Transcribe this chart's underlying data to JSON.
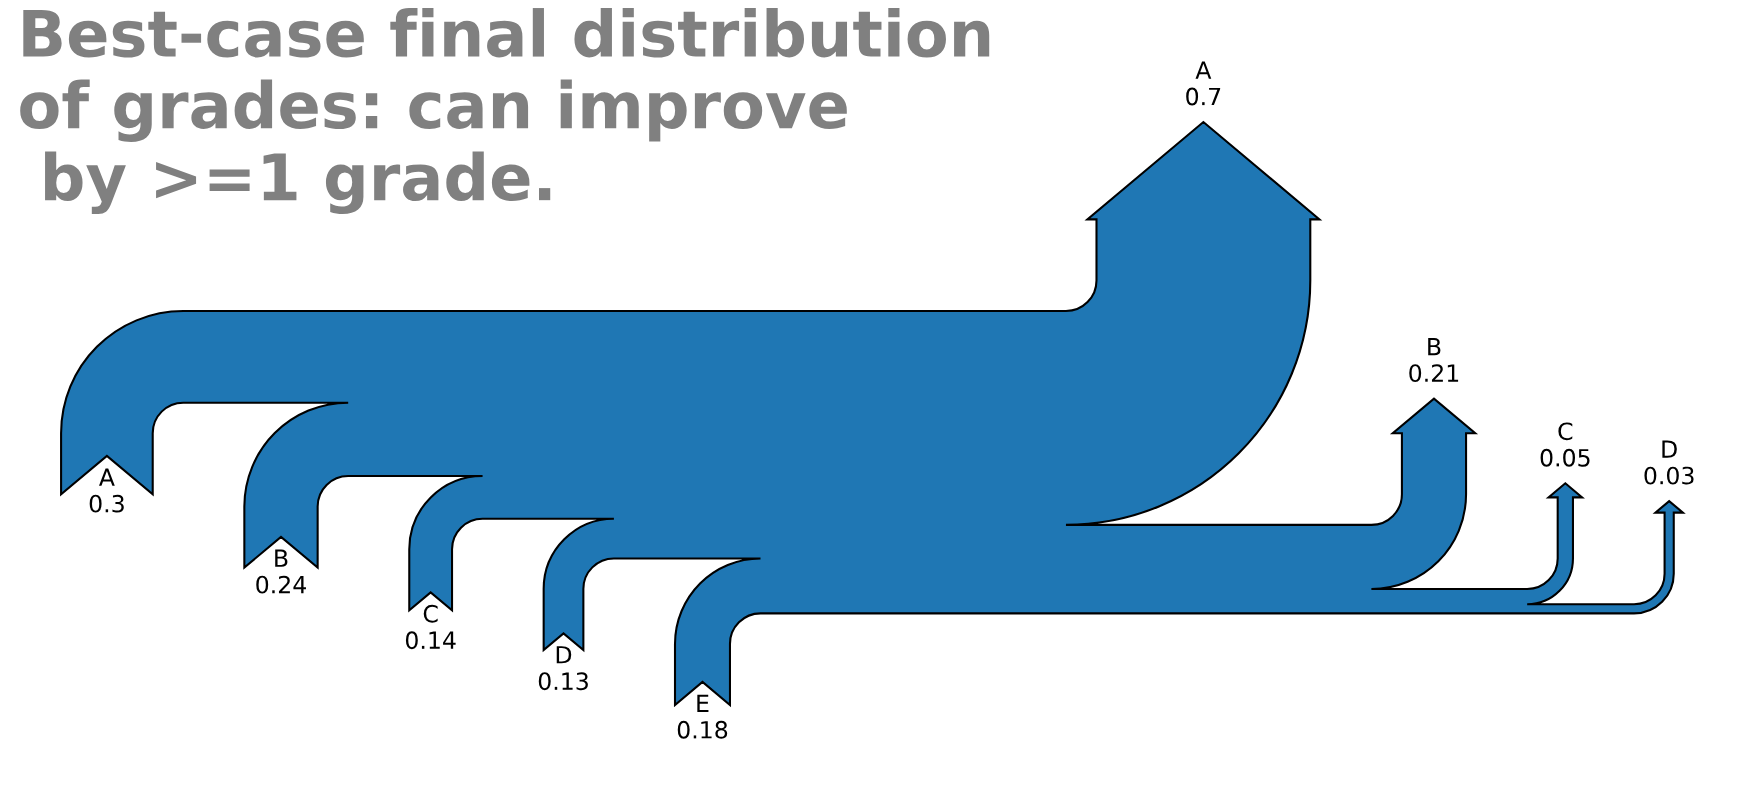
{
  "chart_data": {
    "type": "other",
    "title": "Best-case final distribution\nof grades: can improve\n by >=1 grade.",
    "categories": [
      "A",
      "B",
      "C",
      "D",
      "E",
      "A",
      "B",
      "C",
      "D"
    ],
    "series": [
      {
        "color": "#1f77b4",
        "values": [
          0.3,
          0.24,
          0.14,
          0.13,
          0.18,
          null,
          null,
          null,
          null
        ]
      },
      {
        "color": "#1f77b4",
        "values": [
          null,
          null,
          null,
          null,
          null,
          0.7,
          0.21,
          0.05,
          0.03
        ]
      }
    ],
    "data_labels": true
  }
}
